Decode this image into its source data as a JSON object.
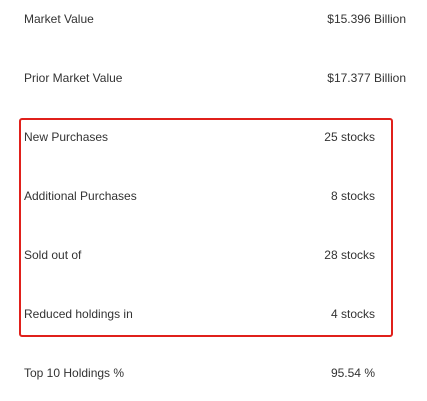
{
  "stats": {
    "market_value": {
      "label": "Market Value",
      "value": "$15.396 Billion"
    },
    "prior_market_value": {
      "label": "Prior Market Value",
      "value": "$17.377 Billion"
    },
    "new_purchases": {
      "label": "New Purchases",
      "value": "25 stocks"
    },
    "additional_purchases": {
      "label": "Additional Purchases",
      "value": "8 stocks"
    },
    "sold_out_of": {
      "label": "Sold out of",
      "value": "28 stocks"
    },
    "reduced_holdings": {
      "label": "Reduced holdings in",
      "value": "4 stocks"
    },
    "top10_holdings": {
      "label": "Top 10 Holdings %",
      "value": "95.54 %"
    }
  },
  "highlight": {
    "color": "#e0201b"
  }
}
